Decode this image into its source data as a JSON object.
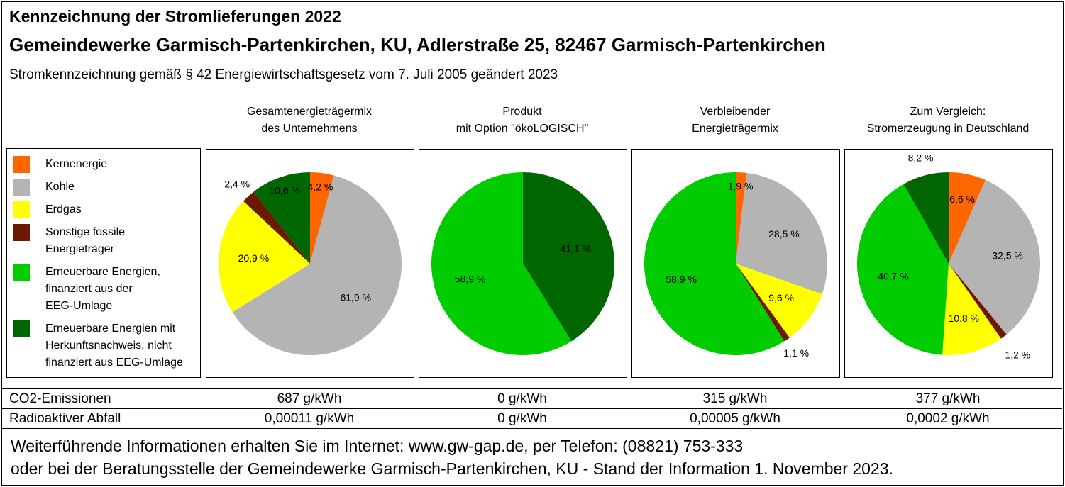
{
  "header": {
    "title": "Kennzeichnung der Stromlieferungen 2022",
    "company": "Gemeindewerke Garmisch-Partenkirchen, KU, Adlerstraße 25, 82467 Garmisch-Partenkirchen",
    "legal": "Stromkennzeichnung gemäß § 42 Energiewirtschaftsgesetz vom 7. Juli 2005 geändert 2023"
  },
  "legend": [
    {
      "lines": [
        "Kernenergie"
      ],
      "color": "#ff6600"
    },
    {
      "lines": [
        "Kohle"
      ],
      "color": "#b4b4b4"
    },
    {
      "lines": [
        "Erdgas"
      ],
      "color": "#ffff00"
    },
    {
      "lines": [
        "Sonstige fossile",
        "Energieträger"
      ],
      "color": "#6b1a00"
    },
    {
      "lines": [
        "Erneuerbare Energien,",
        "finanziert aus der",
        "EEG-Umlage"
      ],
      "color": "#00cc00"
    },
    {
      "lines": [
        "Erneuerbare Energien mit",
        "Herkunftsnachweis, nicht",
        "finanziert aus EEG-Umlage"
      ],
      "color": "#006600"
    }
  ],
  "chart_data": [
    {
      "type": "pie",
      "title_lines": [
        "Gesamtenergieträgermix",
        "des Unternehmens"
      ],
      "slices": [
        {
          "category": "Kernenergie",
          "value": 4.2,
          "label": "4,2 %"
        },
        {
          "category": "Kohle",
          "value": 61.9,
          "label": "61,9 %"
        },
        {
          "category": "Erdgas",
          "value": 20.9,
          "label": "20,9 %"
        },
        {
          "category": "Sonstige fossile Energieträger",
          "value": 2.4,
          "label": "2,4 %"
        },
        {
          "category": "Erneuerbare Energien mit Herkunftsnachweis",
          "value": 10.6,
          "label": "10,6 %"
        }
      ]
    },
    {
      "type": "pie",
      "title_lines": [
        "Produkt",
        "mit Option \"ökoLOGISCH\""
      ],
      "slices": [
        {
          "category": "Erneuerbare Energien mit Herkunftsnachweis",
          "value": 41.1,
          "label": "41,1 %"
        },
        {
          "category": "Erneuerbare Energien, finanziert aus der EEG-Umlage",
          "value": 58.9,
          "label": "58,9 %"
        }
      ]
    },
    {
      "type": "pie",
      "title_lines": [
        "Verbleibender",
        "Energieträgermix"
      ],
      "slices": [
        {
          "category": "Kernenergie",
          "value": 1.9,
          "label": "1,9 %"
        },
        {
          "category": "Kohle",
          "value": 28.5,
          "label": "28,5 %"
        },
        {
          "category": "Erdgas",
          "value": 9.6,
          "label": "9,6 %"
        },
        {
          "category": "Sonstige fossile Energieträger",
          "value": 1.1,
          "label": "1,1 %"
        },
        {
          "category": "Erneuerbare Energien, finanziert aus der EEG-Umlage",
          "value": 58.9,
          "label": "58,9 %"
        }
      ]
    },
    {
      "type": "pie",
      "title_lines": [
        "Zum Vergleich:",
        "Stromerzeugung in Deutschland"
      ],
      "slices": [
        {
          "category": "Kernenergie",
          "value": 6.6,
          "label": "6,6 %"
        },
        {
          "category": "Kohle",
          "value": 32.5,
          "label": "32,5 %"
        },
        {
          "category": "Sonstige fossile Energieträger",
          "value": 1.2,
          "label": "1,2 %"
        },
        {
          "category": "Erdgas",
          "value": 10.8,
          "label": "10,8 %"
        },
        {
          "category": "Erneuerbare Energien, finanziert aus der EEG-Umlage",
          "value": 40.7,
          "label": "40,7 %"
        },
        {
          "category": "Erneuerbare Energien mit Herkunftsnachweis",
          "value": 8.2,
          "label": "8,2 %"
        }
      ]
    }
  ],
  "table": {
    "rows": [
      {
        "label": "CO2-Emissionen",
        "values": [
          "687 g/kWh",
          "0 g/kWh",
          "315 g/kWh",
          "377 g/kWh"
        ]
      },
      {
        "label": "Radioaktiver Abfall",
        "values": [
          "0,00011 g/kWh",
          "0 g/kWh",
          "0,00005 g/kWh",
          "0,0002 g/kWh"
        ]
      }
    ]
  },
  "footer": {
    "line1": "Weiterführende Informationen erhalten Sie im Internet: www.gw-gap.de, per Telefon: (08821) 753-333",
    "line2": "oder bei der Beratungsstelle der Gemeindewerke Garmisch-Partenkirchen, KU - Stand der Information 1. November 2023."
  }
}
